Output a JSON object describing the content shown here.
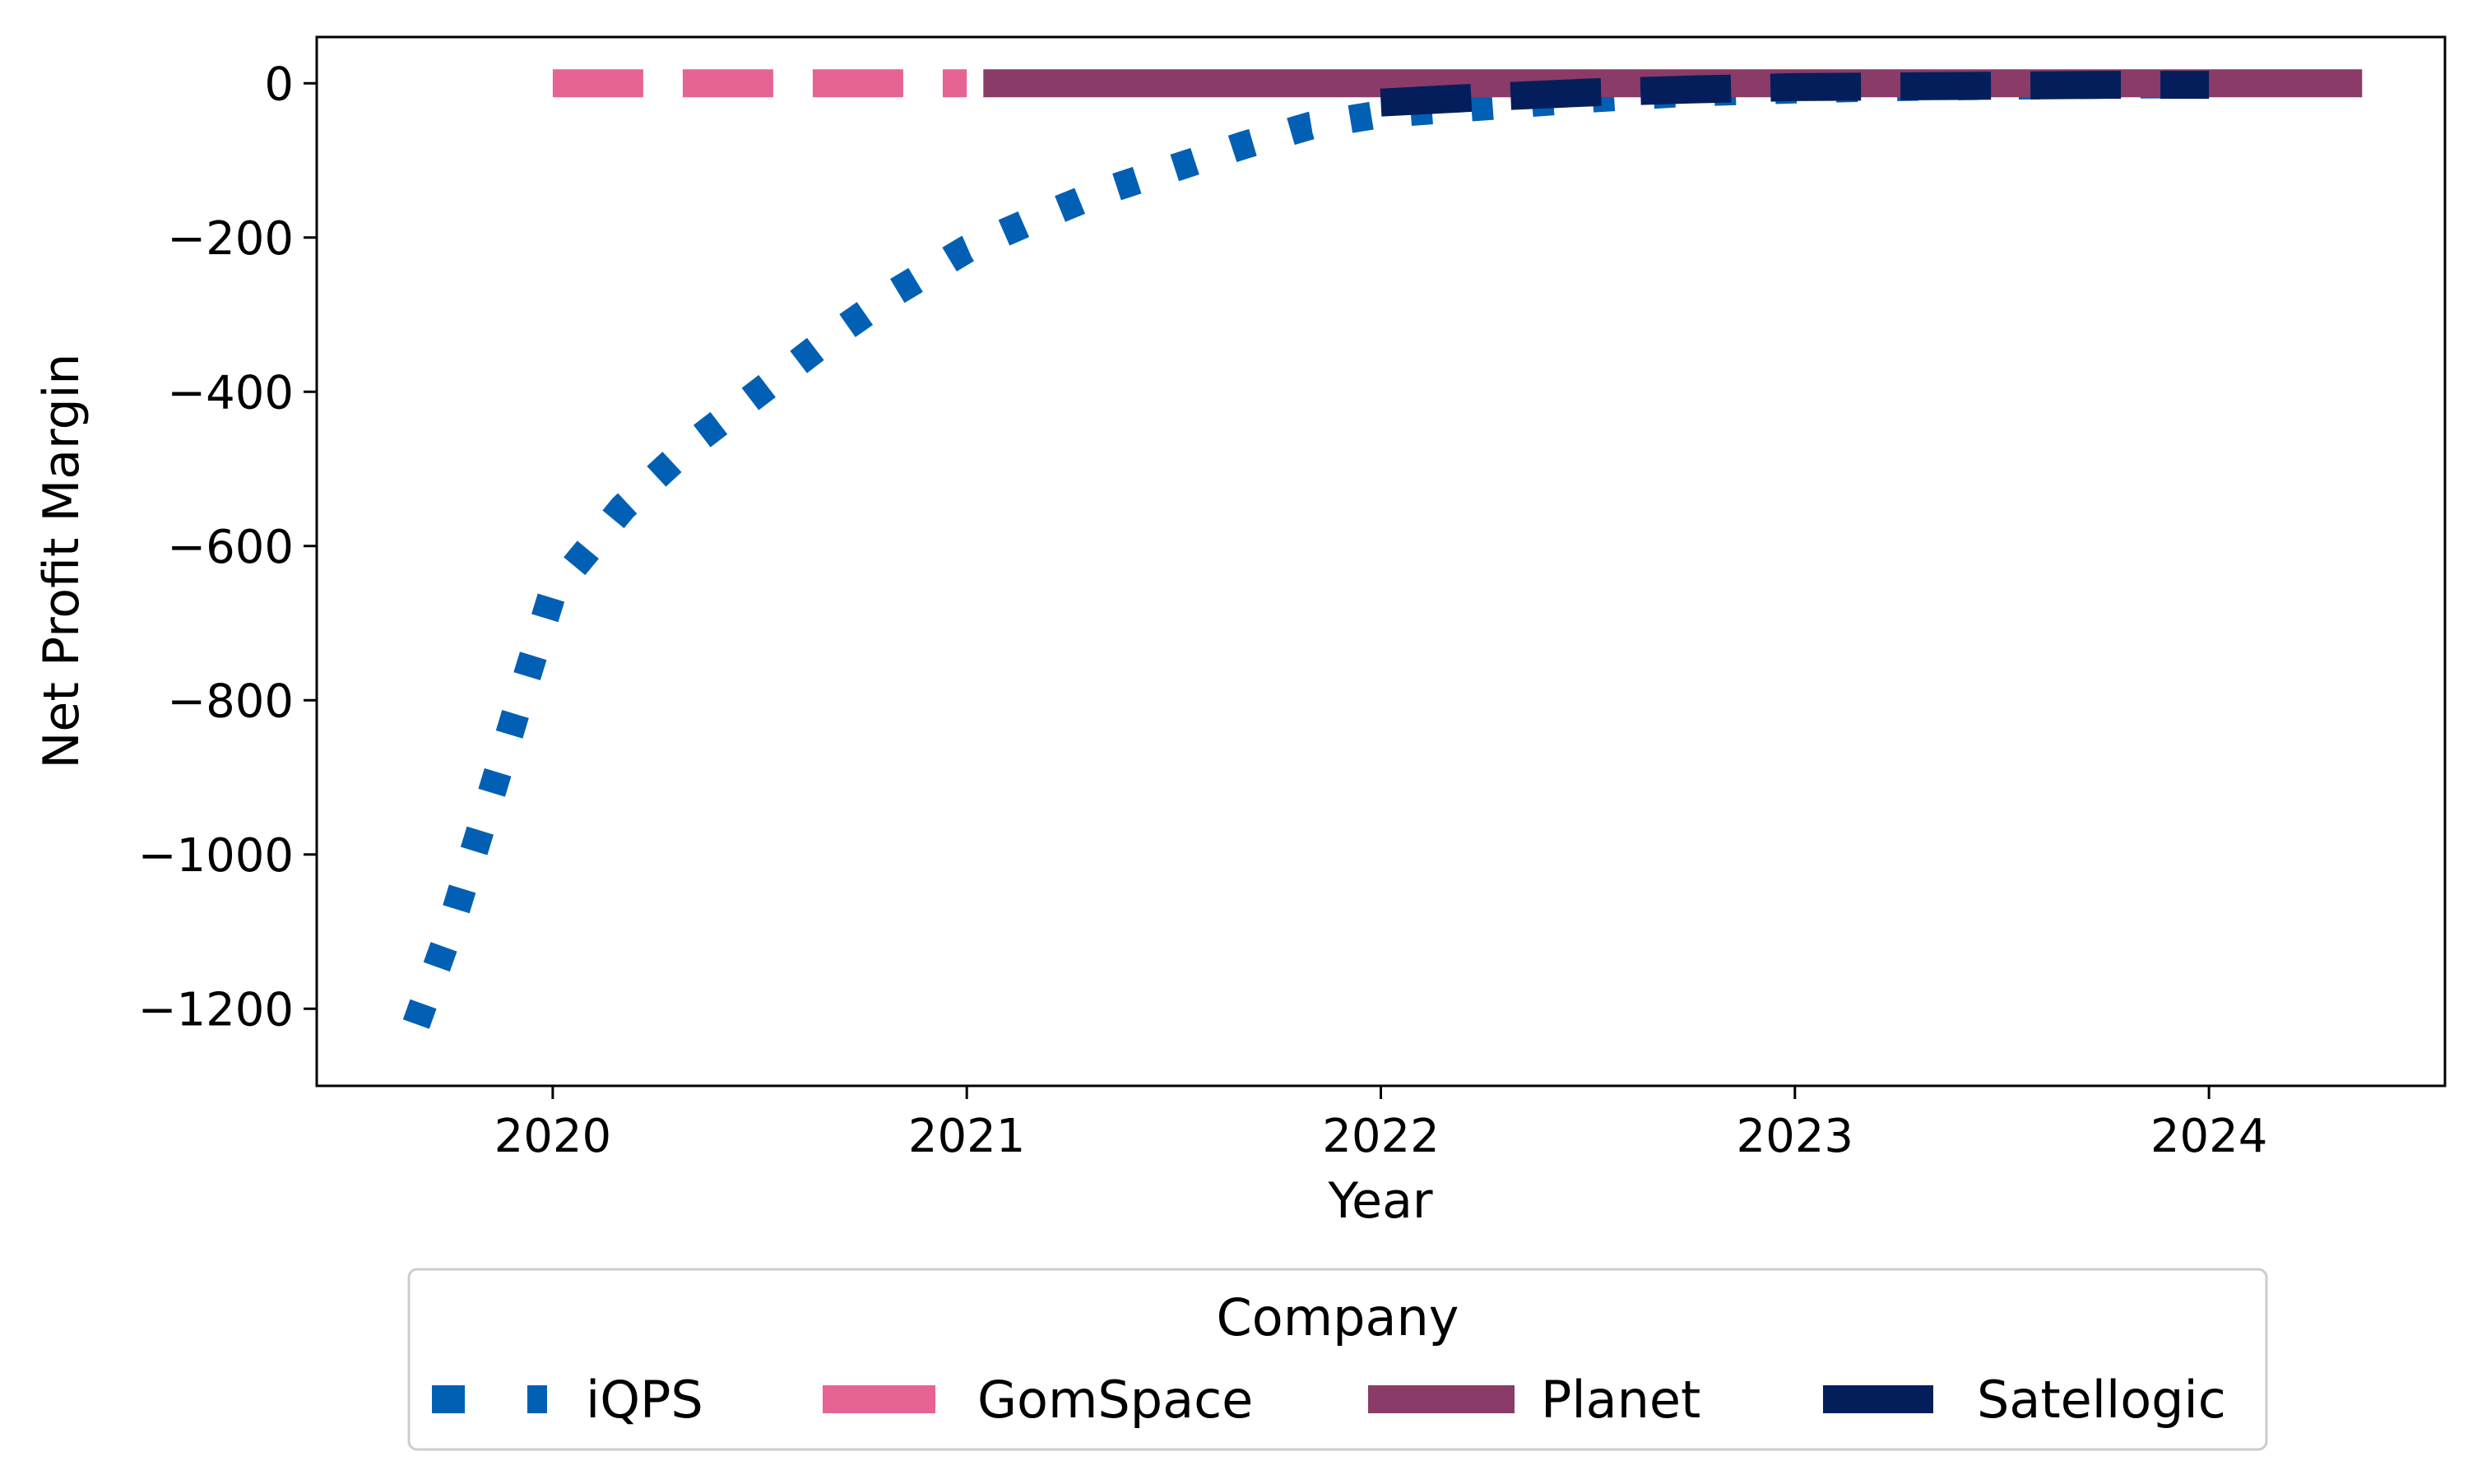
{
  "chart_data": {
    "type": "line",
    "title": "",
    "xlabel": "Year",
    "ylabel": "Net Profit Margin",
    "xlim": [
      2019.43,
      2024.57
    ],
    "ylim": [
      -1300,
      60
    ],
    "xticks": [
      2020,
      2021,
      2022,
      2023,
      2024
    ],
    "yticks": [
      0,
      -200,
      -400,
      -600,
      -800,
      -1000,
      -1200
    ],
    "xtick_labels": [
      "2020",
      "2021",
      "2022",
      "2023",
      "2024"
    ],
    "ytick_labels": [
      "0",
      "−200",
      "−400",
      "−600",
      "−800",
      "−1000",
      "−1200"
    ],
    "grid": false,
    "legend": {
      "title": "Company",
      "placement": "bottom-center-outside",
      "columns": 4
    },
    "series": [
      {
        "name": "iQPS",
        "color": "#0260B4",
        "style": "dotted",
        "x": [
          2019.67,
          2019.75,
          2019.83,
          2019.92,
          2020.0,
          2020.17,
          2020.33,
          2020.5,
          2020.67,
          2020.83,
          2021.0,
          2021.17,
          2021.33,
          2021.5,
          2021.67,
          2021.83,
          2022.0,
          2022.25,
          2022.5,
          2022.75,
          2023.0,
          2023.25,
          2023.5,
          2023.75,
          2024.0
        ],
        "y": [
          -1220,
          -1100,
          -960,
          -800,
          -660,
          -550,
          -470,
          -400,
          -330,
          -270,
          -215,
          -175,
          -140,
          -110,
          -80,
          -55,
          -40,
          -30,
          -20,
          -12,
          -8,
          -5,
          -3,
          -2,
          -1
        ]
      },
      {
        "name": "GomSpace",
        "color": "#E66494",
        "style": "dashed",
        "x": [
          2020.0,
          2020.5,
          2021.0
        ],
        "y": [
          0,
          0,
          0
        ]
      },
      {
        "name": "Planet",
        "color": "#8B3B67",
        "style": "solid",
        "x": [
          2021.04,
          2021.5,
          2022.0,
          2022.5,
          2023.0,
          2023.5,
          2024.0,
          2024.37
        ],
        "y": [
          0,
          0,
          0,
          0,
          0,
          0,
          0,
          0
        ]
      },
      {
        "name": "Satellogic",
        "color": "#041E5C",
        "style": "dashed",
        "x": [
          2022.0,
          2022.25,
          2022.5,
          2022.75,
          2023.0,
          2023.25,
          2023.5,
          2023.75,
          2024.0
        ],
        "y": [
          -25,
          -18,
          -12,
          -8,
          -5,
          -4,
          -3,
          -2,
          -2
        ]
      }
    ]
  }
}
